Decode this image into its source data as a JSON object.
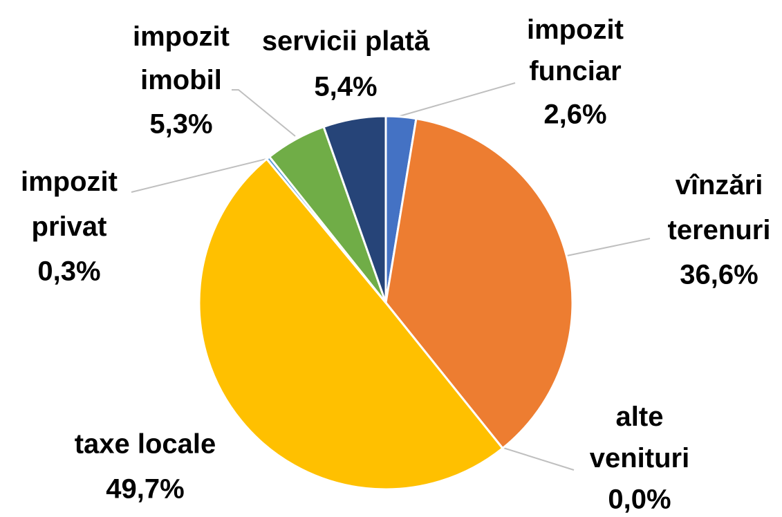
{
  "chart_data": {
    "type": "pie",
    "categories": [
      "impozit funciar",
      "vînzări terenuri",
      "alte venituri",
      "taxe locale",
      "impozit privat",
      "impozit imobil",
      "servicii plată"
    ],
    "values": [
      2.6,
      36.6,
      0.0,
      49.7,
      0.3,
      5.3,
      5.4
    ],
    "value_labels": [
      "2,6%",
      "36,6%",
      "0,0%",
      "49,7%",
      "0,3%",
      "5,3%",
      "5,4%"
    ],
    "colors": [
      "#4472c4",
      "#ed7d31",
      "#a5a5a5",
      "#ffc000",
      "#5b9bd5",
      "#70ad47",
      "#264478"
    ]
  }
}
